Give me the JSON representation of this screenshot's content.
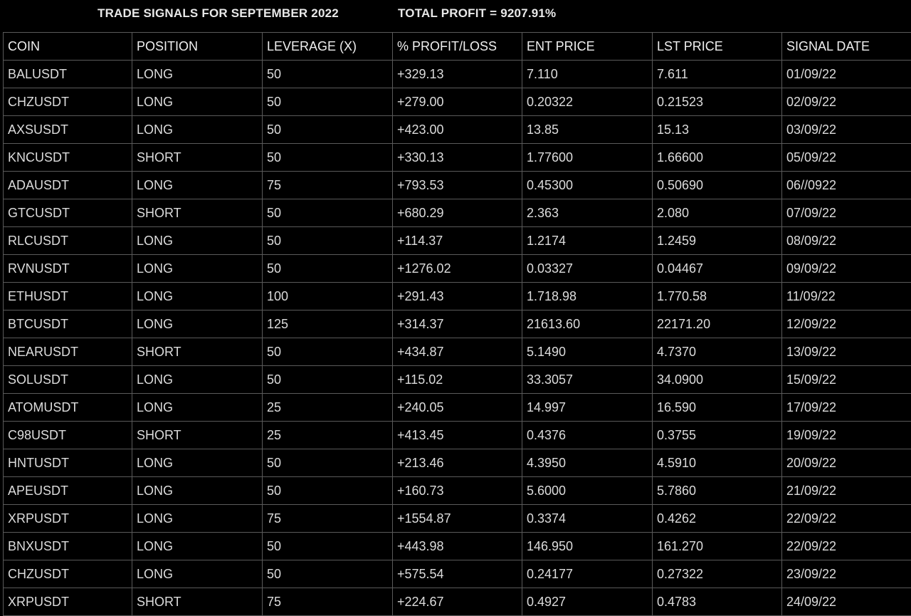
{
  "header": {
    "title": "TRADE SIGNALS FOR SEPTEMBER 2022",
    "total_profit": "TOTAL PROFIT = 9207.91%"
  },
  "table": {
    "columns": [
      "COIN",
      "POSITION",
      "LEVERAGE (X)",
      "% PROFIT/LOSS",
      "ENT PRICE",
      "LST PRICE",
      "SIGNAL DATE"
    ],
    "rows": [
      [
        "BALUSDT",
        "LONG",
        "50",
        "+329.13",
        "7.110",
        "7.611",
        "01/09/22"
      ],
      [
        "CHZUSDT",
        "LONG",
        "50",
        "+279.00",
        "0.20322",
        "0.21523",
        "02/09/22"
      ],
      [
        "AXSUSDT",
        "LONG",
        "50",
        "+423.00",
        "13.85",
        "15.13",
        "03/09/22"
      ],
      [
        "KNCUSDT",
        "SHORT",
        "50",
        "+330.13",
        "1.77600",
        "1.66600",
        "05/09/22"
      ],
      [
        "ADAUSDT",
        "LONG",
        "75",
        "+793.53",
        "0.45300",
        "0.50690",
        "06//0922"
      ],
      [
        "GTCUSDT",
        "SHORT",
        "50",
        "+680.29",
        "2.363",
        "2.080",
        "07/09/22"
      ],
      [
        "RLCUSDT",
        "LONG",
        "50",
        "+114.37",
        "1.2174",
        "1.2459",
        "08/09/22"
      ],
      [
        "RVNUSDT",
        "LONG",
        "50",
        "+1276.02",
        "0.03327",
        "0.04467",
        "09/09/22"
      ],
      [
        "ETHUSDT",
        "LONG",
        "100",
        "+291.43",
        "1.718.98",
        "1.770.58",
        "11/09/22"
      ],
      [
        "BTCUSDT",
        "LONG",
        "125",
        "+314.37",
        "21613.60",
        "22171.20",
        "12/09/22"
      ],
      [
        "NEARUSDT",
        "SHORT",
        "50",
        "+434.87",
        "5.1490",
        "4.7370",
        "13/09/22"
      ],
      [
        "SOLUSDT",
        "LONG",
        "50",
        "+115.02",
        "33.3057",
        "34.0900",
        "15/09/22"
      ],
      [
        "ATOMUSDT",
        "LONG",
        "25",
        "+240.05",
        "14.997",
        "16.590",
        "17/09/22"
      ],
      [
        "C98USDT",
        "SHORT",
        "25",
        "+413.45",
        "0.4376",
        "0.3755",
        "19/09/22"
      ],
      [
        "HNTUSDT",
        "LONG",
        "50",
        "+213.46",
        "4.3950",
        "4.5910",
        "20/09/22"
      ],
      [
        "APEUSDT",
        "LONG",
        "50",
        "+160.73",
        "5.6000",
        "5.7860",
        "21/09/22"
      ],
      [
        "XRPUSDT",
        "LONG",
        "75",
        "+1554.87",
        "0.3374",
        "0.4262",
        "22/09/22"
      ],
      [
        "BNXUSDT",
        "LONG",
        "50",
        "+443.98",
        "146.950",
        "161.270",
        "22/09/22"
      ],
      [
        "CHZUSDT",
        "LONG",
        "50",
        "+575.54",
        "0.24177",
        "0.27322",
        "23/09/22"
      ],
      [
        "XRPUSDT",
        "SHORT",
        "75",
        "+224.67",
        "0.4927",
        "0.4783",
        "24/09/22"
      ]
    ]
  }
}
